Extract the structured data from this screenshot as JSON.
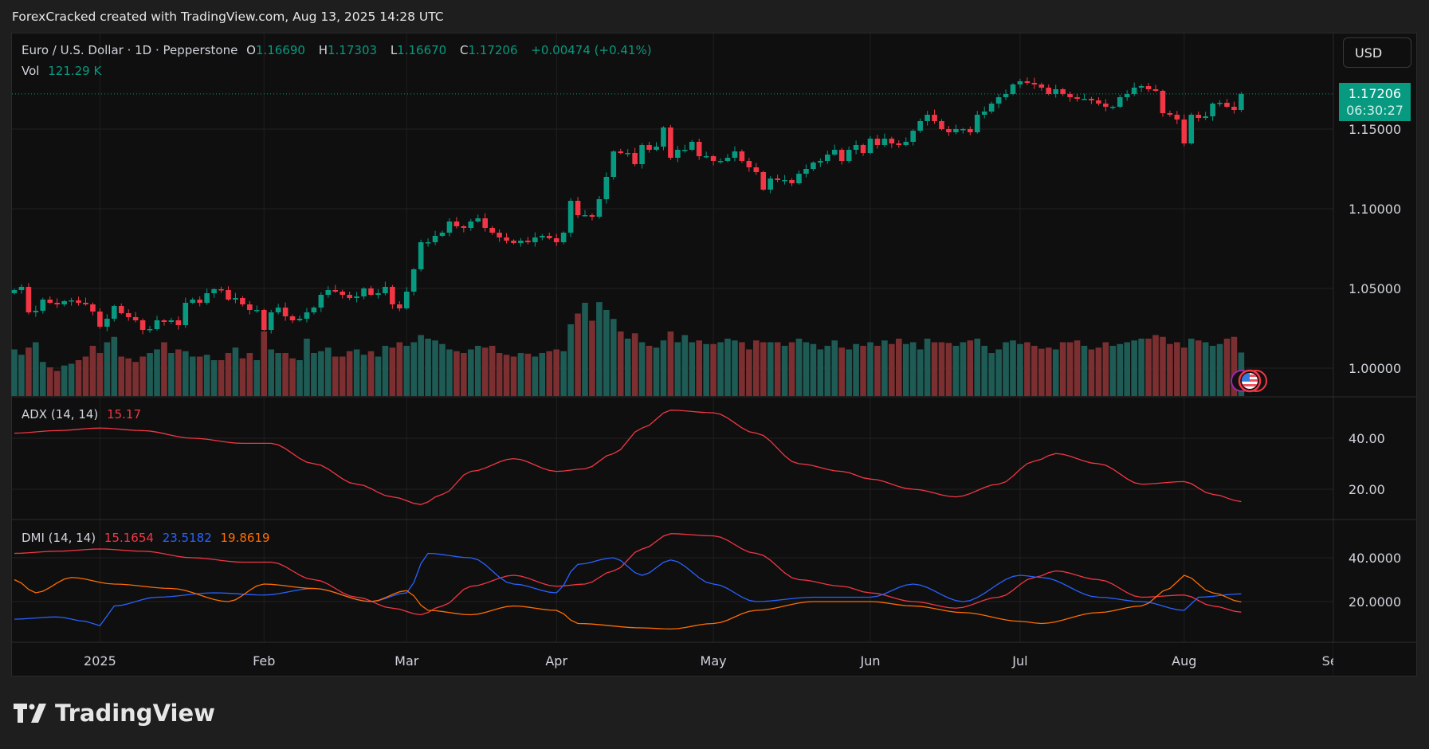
{
  "caption": "ForexCracked created with TradingView.com, Aug 13, 2025 14:28 UTC",
  "symbol": {
    "title": "Euro / U.S. Dollar · 1D · Pepperstone",
    "o_label": "O",
    "o": "1.16690",
    "h_label": "H",
    "h": "1.17303",
    "l_label": "L",
    "l": "1.16670",
    "c_label": "C",
    "c": "1.17206",
    "change": "+0.00474 (+0.41%)",
    "vol_label": "Vol",
    "vol": "121.29 K"
  },
  "currency_button": "USD",
  "price_tag": {
    "price": "1.17206",
    "countdown": "06:30:27"
  },
  "adx_legend": {
    "label": "ADX (14, 14)",
    "value": "15.17"
  },
  "dmi_legend": {
    "label": "DMI (14, 14)",
    "adx": "15.1654",
    "plus_di": "23.5182",
    "minus_di": "19.8619"
  },
  "brand": "TradingView",
  "colors": {
    "up": "#089981",
    "down": "#f23645",
    "vol_up": "#1e5b55",
    "vol_down": "#7b2f31",
    "adx": "#f23645",
    "plus_di": "#2962ff",
    "minus_di": "#ff6d00"
  },
  "chart_data": [
    {
      "type": "candlestick",
      "title": "Euro / U.S. Dollar 1D",
      "price_ticks": [
        "1.15000",
        "1.10000",
        "1.05000",
        "1.00000"
      ],
      "price_tick_values": [
        1.15,
        1.1,
        1.05,
        1.0
      ],
      "last_price": 1.17206,
      "time_labels": [
        {
          "label": "2025",
          "bar": 12
        },
        {
          "label": "Feb",
          "bar": 35
        },
        {
          "label": "Mar",
          "bar": 55
        },
        {
          "label": "Apr",
          "bar": 76
        },
        {
          "label": "May",
          "bar": 98
        },
        {
          "label": "Jun",
          "bar": 120
        },
        {
          "label": "Jul",
          "bar": 141
        },
        {
          "label": "Aug",
          "bar": 164
        },
        {
          "label": "Sep",
          "bar": 185
        }
      ],
      "closes": [
        1.049,
        1.051,
        1.035,
        1.036,
        1.043,
        1.041,
        1.04,
        1.042,
        1.0425,
        1.041,
        1.04,
        1.0355,
        1.026,
        1.031,
        1.039,
        1.0345,
        1.032,
        1.03,
        1.024,
        1.0245,
        1.03,
        1.029,
        1.03,
        1.027,
        1.041,
        1.043,
        1.041,
        1.047,
        1.0495,
        1.049,
        1.043,
        1.044,
        1.04,
        1.0365,
        1.0365,
        1.024,
        1.035,
        1.038,
        1.0325,
        1.03,
        1.031,
        1.035,
        1.038,
        1.046,
        1.049,
        1.048,
        1.046,
        1.044,
        1.045,
        1.05,
        1.046,
        1.047,
        1.051,
        1.04,
        1.0375,
        1.048,
        1.062,
        1.079,
        1.079,
        1.083,
        1.085,
        1.092,
        1.089,
        1.088,
        1.092,
        1.094,
        1.088,
        1.085,
        1.082,
        1.08,
        1.0785,
        1.08,
        1.079,
        1.082,
        1.083,
        1.0815,
        1.079,
        1.085,
        1.105,
        1.096,
        1.096,
        1.095,
        1.106,
        1.12,
        1.136,
        1.135,
        1.135,
        1.128,
        1.14,
        1.137,
        1.139,
        1.151,
        1.132,
        1.137,
        1.137,
        1.142,
        1.133,
        1.133,
        1.13,
        1.13,
        1.132,
        1.136,
        1.13,
        1.126,
        1.123,
        1.112,
        1.119,
        1.118,
        1.118,
        1.116,
        1.122,
        1.125,
        1.129,
        1.13,
        1.134,
        1.137,
        1.13,
        1.137,
        1.14,
        1.135,
        1.144,
        1.14,
        1.144,
        1.141,
        1.14,
        1.142,
        1.149,
        1.155,
        1.159,
        1.155,
        1.15,
        1.148,
        1.15,
        1.15,
        1.148,
        1.159,
        1.161,
        1.166,
        1.17,
        1.172,
        1.178,
        1.18,
        1.179,
        1.178,
        1.176,
        1.172,
        1.175,
        1.172,
        1.17,
        1.169,
        1.169,
        1.168,
        1.166,
        1.164,
        1.164,
        1.17,
        1.172,
        1.176,
        1.177,
        1.175,
        1.174,
        1.16,
        1.159,
        1.156,
        1.141,
        1.159,
        1.157,
        1.158,
        1.166,
        1.1665,
        1.164,
        1.162,
        1.1721
      ],
      "volumes_k": [
        130,
        115,
        135,
        150,
        95,
        80,
        70,
        85,
        90,
        100,
        110,
        140,
        120,
        150,
        165,
        110,
        105,
        95,
        110,
        120,
        130,
        150,
        120,
        130,
        125,
        110,
        110,
        115,
        100,
        100,
        120,
        135,
        105,
        120,
        100,
        180,
        130,
        120,
        120,
        105,
        100,
        160,
        120,
        125,
        135,
        110,
        110,
        125,
        130,
        115,
        125,
        110,
        140,
        135,
        150,
        140,
        150,
        170,
        160,
        155,
        145,
        130,
        125,
        120,
        130,
        140,
        135,
        140,
        120,
        115,
        110,
        120,
        118,
        110,
        120,
        125,
        130,
        125,
        200,
        230,
        260,
        210,
        262,
        240,
        215,
        180,
        160,
        175,
        150,
        140,
        135,
        155,
        180,
        150,
        170,
        150,
        155,
        145,
        145,
        150,
        160,
        155,
        150,
        130,
        155,
        150,
        150,
        150,
        140,
        150,
        160,
        150,
        145,
        130,
        140,
        155,
        135,
        130,
        145,
        140,
        150,
        140,
        155,
        145,
        160,
        145,
        150,
        130,
        160,
        150,
        150,
        148,
        140,
        150,
        155,
        160,
        140,
        120,
        130,
        150,
        155,
        145,
        150,
        140,
        132,
        135,
        130,
        150,
        150,
        155,
        140,
        130,
        135,
        150,
        140,
        145,
        150,
        155,
        160,
        160,
        170,
        165,
        145,
        150,
        135,
        160,
        155,
        150,
        140,
        145,
        160,
        165,
        121.29
      ]
    },
    {
      "type": "line",
      "title": "ADX (14, 14)",
      "ticks": [
        "40.00",
        "20.00"
      ],
      "tick_values": [
        40,
        20
      ],
      "adx": [
        [
          0,
          42
        ],
        [
          6,
          43
        ],
        [
          12,
          44
        ],
        [
          18,
          43
        ],
        [
          25,
          40
        ],
        [
          32,
          38
        ],
        [
          36,
          38
        ],
        [
          42,
          30
        ],
        [
          48,
          22
        ],
        [
          53,
          17
        ],
        [
          57,
          14
        ],
        [
          60,
          18
        ],
        [
          64,
          27
        ],
        [
          70,
          32
        ],
        [
          76,
          27
        ],
        [
          80,
          28
        ],
        [
          84,
          34
        ],
        [
          88,
          44
        ],
        [
          92,
          51
        ],
        [
          98,
          50
        ],
        [
          104,
          42
        ],
        [
          110,
          30
        ],
        [
          116,
          27
        ],
        [
          120,
          24
        ],
        [
          126,
          20
        ],
        [
          132,
          17
        ],
        [
          138,
          22
        ],
        [
          143,
          31
        ],
        [
          146,
          34
        ],
        [
          152,
          30
        ],
        [
          158,
          22
        ],
        [
          164,
          23
        ],
        [
          168,
          18
        ],
        [
          172,
          15.17
        ]
      ]
    },
    {
      "type": "line",
      "title": "DMI (14, 14)",
      "ticks": [
        "40.0000",
        "20.0000"
      ],
      "tick_values": [
        40,
        20
      ],
      "plus_di": [
        [
          0,
          12
        ],
        [
          6,
          13
        ],
        [
          10,
          11
        ],
        [
          12,
          9
        ],
        [
          14,
          18
        ],
        [
          20,
          22
        ],
        [
          28,
          24
        ],
        [
          35,
          23
        ],
        [
          42,
          26
        ],
        [
          50,
          20
        ],
        [
          55,
          24
        ],
        [
          58,
          42
        ],
        [
          64,
          40
        ],
        [
          70,
          28
        ],
        [
          76,
          24
        ],
        [
          79,
          37
        ],
        [
          84,
          40
        ],
        [
          88,
          32
        ],
        [
          92,
          39
        ],
        [
          98,
          28
        ],
        [
          104,
          20
        ],
        [
          112,
          22
        ],
        [
          120,
          22
        ],
        [
          126,
          28
        ],
        [
          133,
          20
        ],
        [
          141,
          32
        ],
        [
          144,
          31
        ],
        [
          152,
          22
        ],
        [
          158,
          20
        ],
        [
          164,
          16
        ],
        [
          166,
          22
        ],
        [
          172,
          23.52
        ]
      ],
      "minus_di": [
        [
          0,
          30
        ],
        [
          3,
          24
        ],
        [
          8,
          31
        ],
        [
          14,
          28
        ],
        [
          22,
          26
        ],
        [
          30,
          20
        ],
        [
          35,
          28
        ],
        [
          42,
          26
        ],
        [
          50,
          20
        ],
        [
          55,
          25
        ],
        [
          58,
          16
        ],
        [
          64,
          14
        ],
        [
          70,
          18
        ],
        [
          76,
          16
        ],
        [
          79,
          10
        ],
        [
          88,
          8
        ],
        [
          92,
          7.5
        ],
        [
          98,
          10
        ],
        [
          104,
          16
        ],
        [
          112,
          20
        ],
        [
          120,
          20
        ],
        [
          126,
          18
        ],
        [
          133,
          15
        ],
        [
          141,
          11
        ],
        [
          144,
          10
        ],
        [
          152,
          15
        ],
        [
          158,
          18
        ],
        [
          162,
          26
        ],
        [
          164,
          32
        ],
        [
          168,
          24
        ],
        [
          172,
          19.86
        ]
      ]
    }
  ]
}
